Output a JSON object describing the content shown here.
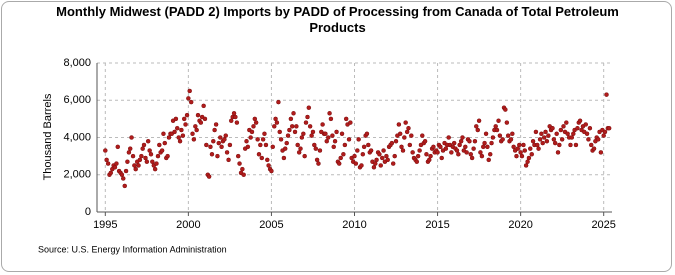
{
  "chart_data": {
    "type": "scatter",
    "title": "Monthly Midwest (PADD 2) Imports by PADD of Processing from Canada of Total Petroleum Products",
    "y_label": "Thousand Barrels",
    "source": "Source: U.S. Energy Information Administration",
    "color": "#b01c1c",
    "grid": true,
    "xlim": [
      1994.5,
      2025.5
    ],
    "xticks": [
      1995,
      2000,
      2005,
      2010,
      2015,
      2020,
      2025
    ],
    "ylim": [
      0,
      8000
    ],
    "yticks": [
      0,
      {
        "value": 2000,
        "label": "2,000"
      },
      {
        "value": 4000,
        "label": "4,000"
      },
      {
        "value": 6000,
        "label": "6,000"
      },
      {
        "value": 8000,
        "label": "8,000"
      }
    ],
    "x": [
      1995,
      1995.08,
      1995.17,
      1995.25,
      1995.33,
      1995.42,
      1995.5,
      1995.58,
      1995.67,
      1995.75,
      1995.83,
      1995.92,
      1996,
      1996.08,
      1996.17,
      1996.25,
      1996.33,
      1996.42,
      1996.5,
      1996.58,
      1996.67,
      1996.75,
      1996.83,
      1996.92,
      1997,
      1997.08,
      1997.17,
      1997.25,
      1997.33,
      1997.42,
      1997.5,
      1997.58,
      1997.67,
      1997.75,
      1997.83,
      1997.92,
      1998,
      1998.08,
      1998.17,
      1998.25,
      1998.33,
      1998.42,
      1998.5,
      1998.58,
      1998.67,
      1998.75,
      1998.83,
      1998.92,
      1999,
      1999.08,
      1999.17,
      1999.25,
      1999.33,
      1999.42,
      1999.5,
      1999.58,
      1999.67,
      1999.75,
      1999.83,
      1999.92,
      2000,
      2000.08,
      2000.17,
      2000.25,
      2000.33,
      2000.42,
      2000.5,
      2000.58,
      2000.67,
      2000.75,
      2000.83,
      2000.92,
      2001,
      2001.08,
      2001.17,
      2001.25,
      2001.33,
      2001.42,
      2001.5,
      2001.58,
      2001.67,
      2001.75,
      2001.83,
      2001.92,
      2002,
      2002.08,
      2002.17,
      2002.25,
      2002.33,
      2002.42,
      2002.5,
      2002.58,
      2002.67,
      2002.75,
      2002.83,
      2002.92,
      2003,
      2003.08,
      2003.17,
      2003.25,
      2003.33,
      2003.42,
      2003.5,
      2003.58,
      2003.67,
      2003.75,
      2003.83,
      2003.92,
      2004,
      2004.08,
      2004.17,
      2004.25,
      2004.33,
      2004.42,
      2004.5,
      2004.58,
      2004.67,
      2004.75,
      2004.83,
      2004.92,
      2005,
      2005.08,
      2005.17,
      2005.25,
      2005.33,
      2005.42,
      2005.5,
      2005.58,
      2005.67,
      2005.75,
      2005.83,
      2005.92,
      2006,
      2006.08,
      2006.17,
      2006.25,
      2006.33,
      2006.42,
      2006.5,
      2006.58,
      2006.67,
      2006.75,
      2006.83,
      2006.92,
      2007,
      2007.08,
      2007.17,
      2007.25,
      2007.33,
      2007.42,
      2007.5,
      2007.58,
      2007.67,
      2007.75,
      2007.83,
      2007.92,
      2008,
      2008.08,
      2008.17,
      2008.25,
      2008.33,
      2008.42,
      2008.5,
      2008.58,
      2008.67,
      2008.75,
      2008.83,
      2008.92,
      2009,
      2009.08,
      2009.17,
      2009.25,
      2009.33,
      2009.42,
      2009.5,
      2009.58,
      2009.67,
      2009.75,
      2009.83,
      2009.92,
      2010,
      2010.08,
      2010.17,
      2010.25,
      2010.33,
      2010.42,
      2010.5,
      2010.58,
      2010.67,
      2010.75,
      2010.83,
      2010.92,
      2011,
      2011.08,
      2011.17,
      2011.25,
      2011.33,
      2011.42,
      2011.5,
      2011.58,
      2011.67,
      2011.75,
      2011.83,
      2011.92,
      2012,
      2012.08,
      2012.17,
      2012.25,
      2012.33,
      2012.42,
      2012.5,
      2012.58,
      2012.67,
      2012.75,
      2012.83,
      2012.92,
      2013,
      2013.08,
      2013.17,
      2013.25,
      2013.33,
      2013.42,
      2013.5,
      2013.58,
      2013.67,
      2013.75,
      2013.83,
      2013.92,
      2014,
      2014.08,
      2014.17,
      2014.25,
      2014.33,
      2014.42,
      2014.5,
      2014.58,
      2014.67,
      2014.75,
      2014.83,
      2014.92,
      2015,
      2015.08,
      2015.17,
      2015.25,
      2015.33,
      2015.42,
      2015.5,
      2015.58,
      2015.67,
      2015.75,
      2015.83,
      2015.92,
      2016,
      2016.08,
      2016.17,
      2016.25,
      2016.33,
      2016.42,
      2016.5,
      2016.58,
      2016.67,
      2016.75,
      2016.83,
      2016.92,
      2017,
      2017.08,
      2017.17,
      2017.25,
      2017.33,
      2017.42,
      2017.5,
      2017.58,
      2017.67,
      2017.75,
      2017.83,
      2017.92,
      2018,
      2018.08,
      2018.17,
      2018.25,
      2018.33,
      2018.42,
      2018.5,
      2018.58,
      2018.67,
      2018.75,
      2018.83,
      2018.92,
      2019,
      2019.08,
      2019.17,
      2019.25,
      2019.33,
      2019.42,
      2019.5,
      2019.58,
      2019.67,
      2019.75,
      2019.83,
      2019.92,
      2020,
      2020.08,
      2020.17,
      2020.25,
      2020.33,
      2020.42,
      2020.5,
      2020.58,
      2020.67,
      2020.75,
      2020.83,
      2020.92,
      2021,
      2021.08,
      2021.17,
      2021.25,
      2021.33,
      2021.42,
      2021.5,
      2021.58,
      2021.67,
      2021.75,
      2021.83,
      2021.92,
      2022,
      2022.08,
      2022.17,
      2022.25,
      2022.33,
      2022.42,
      2022.5,
      2022.58,
      2022.67,
      2022.75,
      2022.83,
      2022.92,
      2023,
      2023.08,
      2023.17,
      2023.25,
      2023.33,
      2023.42,
      2023.5,
      2023.58,
      2023.67,
      2023.75,
      2023.83,
      2023.92,
      2024,
      2024.08,
      2024.17,
      2024.25,
      2024.33,
      2024.42,
      2024.5,
      2024.58,
      2024.67,
      2024.75,
      2024.83,
      2024.92,
      2025,
      2025.08,
      2025.17,
      2025.25,
      2025.33
    ],
    "values": [
      3300,
      2800,
      2600,
      2000,
      2100,
      2300,
      2500,
      2400,
      2600,
      3500,
      2200,
      2100,
      2000,
      1800,
      1400,
      2200,
      2700,
      3200,
      3400,
      4000,
      3000,
      2500,
      2300,
      2700,
      2500,
      2800,
      3000,
      3400,
      3600,
      2900,
      2700,
      3800,
      3300,
      3100,
      2700,
      2500,
      2300,
      2600,
      3000,
      3600,
      3200,
      3300,
      4200,
      3700,
      2900,
      3000,
      4000,
      4200,
      4200,
      4900,
      4300,
      5000,
      4500,
      4000,
      3800,
      4400,
      4100,
      5000,
      4700,
      5200,
      6100,
      6500,
      5900,
      4200,
      3900,
      4600,
      4400,
      5200,
      4900,
      4800,
      5100,
      5700,
      5000,
      3600,
      2000,
      1900,
      3500,
      3100,
      3800,
      4400,
      4700,
      3000,
      3700,
      4000,
      3500,
      3800,
      3900,
      4100,
      3200,
      2800,
      3600,
      4900,
      5100,
      5300,
      5100,
      4800,
      3000,
      2600,
      2100,
      2300,
      2000,
      3400,
      3800,
      3500,
      4400,
      4000,
      4300,
      4600,
      5000,
      4800,
      3900,
      3100,
      3600,
      2900,
      3900,
      4200,
      3600,
      2800,
      2500,
      2300,
      2200,
      3500,
      4600,
      5000,
      4800,
      5900,
      4300,
      3900,
      3300,
      2900,
      3400,
      3700,
      4100,
      4400,
      5000,
      4600,
      5300,
      4300,
      4600,
      3600,
      3200,
      3400,
      4000,
      4200,
      3000,
      4800,
      5100,
      5600,
      4600,
      4100,
      4300,
      3600,
      3400,
      2800,
      2600,
      3300,
      4300,
      4700,
      4200,
      4200,
      3800,
      4000,
      5300,
      5000,
      4100,
      3500,
      3800,
      4300,
      2700,
      2600,
      2900,
      4200,
      3100,
      3600,
      5000,
      4700,
      3900,
      4800,
      2900,
      2700,
      3000,
      2600,
      3300,
      3900,
      2400,
      2500,
      3100,
      3500,
      4100,
      4200,
      3600,
      3200,
      3300,
      2700,
      2400,
      2600,
      2800,
      3200,
      3100,
      2500,
      2900,
      3300,
      2700,
      3000,
      2800,
      3500,
      3600,
      3700,
      2600,
      3000,
      3800,
      4100,
      4700,
      4200,
      3500,
      3300,
      4000,
      4800,
      4300,
      4500,
      3600,
      4100,
      3200,
      2900,
      2800,
      2700,
      3000,
      3300,
      3600,
      4100,
      3700,
      3800,
      3100,
      2700,
      2800,
      3000,
      3400,
      3500,
      3200,
      3300,
      3200,
      3600,
      3500,
      2900,
      3300,
      3700,
      3400,
      3600,
      4000,
      3600,
      3200,
      3500,
      3700,
      3400,
      3300,
      3100,
      3600,
      3800,
      4000,
      3300,
      3500,
      3200,
      3900,
      3800,
      3100,
      2900,
      3400,
      3800,
      4600,
      4400,
      4900,
      3200,
      3000,
      3500,
      3700,
      4200,
      3500,
      2800,
      3100,
      3700,
      4000,
      4400,
      4600,
      4400,
      4900,
      4100,
      3800,
      3900,
      5600,
      5500,
      4800,
      4100,
      3800,
      3900,
      4200,
      3500,
      3300,
      3000,
      3400,
      3600,
      3200,
      3000,
      3600,
      3300,
      2500,
      2700,
      2900,
      3400,
      3100,
      3800,
      3600,
      4300,
      3600,
      3400,
      3900,
      4200,
      3700,
      4000,
      4300,
      3800,
      4100,
      4600,
      4400,
      4500,
      3900,
      3700,
      4200,
      3200,
      3600,
      4400,
      3900,
      4600,
      4300,
      4800,
      4200,
      4000,
      3600,
      4000,
      4200,
      4400,
      3600,
      4500,
      4800,
      4900,
      4400,
      4600,
      4300,
      4700,
      4200,
      3900,
      4500,
      3600,
      3300,
      3400,
      3800,
      4000,
      3900,
      4300,
      3200,
      4400,
      4100,
      4300,
      6300,
      4500,
      4500
    ]
  }
}
